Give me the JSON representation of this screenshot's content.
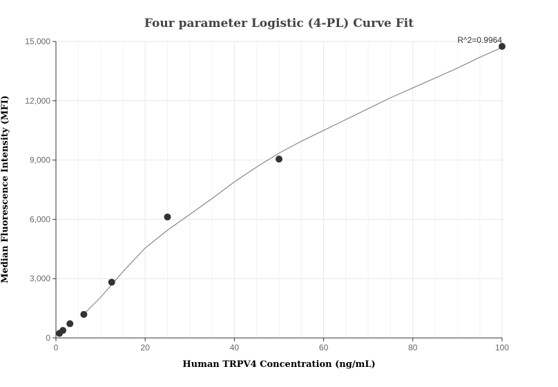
{
  "chart_data": {
    "type": "scatter",
    "title": "Four parameter Logistic (4-PL) Curve Fit",
    "xlabel": "Human TRPV4 Concentration (ng/mL)",
    "ylabel": "Median Fluorescence Intensity (MFI)",
    "xlim": [
      0,
      100
    ],
    "ylim": [
      0,
      15000
    ],
    "x_ticks": [
      0,
      20,
      40,
      60,
      80,
      100
    ],
    "x_tick_labels": [
      "0",
      "20",
      "40",
      "60",
      "80",
      "100"
    ],
    "y_ticks": [
      0,
      3000,
      6000,
      9000,
      12000,
      15000
    ],
    "y_tick_labels": [
      "0",
      "3,000",
      "6,000",
      "9,000",
      "12,000",
      "15,000"
    ],
    "grid": true,
    "series": [
      {
        "points": [
          {
            "x": 0.78,
            "y": 230
          },
          {
            "x": 1.56,
            "y": 380
          },
          {
            "x": 3.13,
            "y": 720
          },
          {
            "x": 6.25,
            "y": 1190
          },
          {
            "x": 12.5,
            "y": 2820
          },
          {
            "x": 25,
            "y": 6120
          },
          {
            "x": 50,
            "y": 9050
          },
          {
            "x": 100,
            "y": 14750
          }
        ],
        "color": "#333333"
      }
    ],
    "fit_curve": {
      "x": [
        6,
        10,
        15,
        20,
        25,
        30,
        35,
        40,
        45,
        50,
        55,
        60,
        65,
        70,
        75,
        80,
        85,
        90,
        95,
        100
      ],
      "y": [
        1150,
        2050,
        3350,
        4550,
        5450,
        6250,
        7050,
        7900,
        8650,
        9350,
        9950,
        10500,
        11050,
        11600,
        12150,
        12650,
        13150,
        13650,
        14200,
        14700
      ],
      "color": "#888888"
    },
    "annotation": "R^2=0.9964"
  }
}
